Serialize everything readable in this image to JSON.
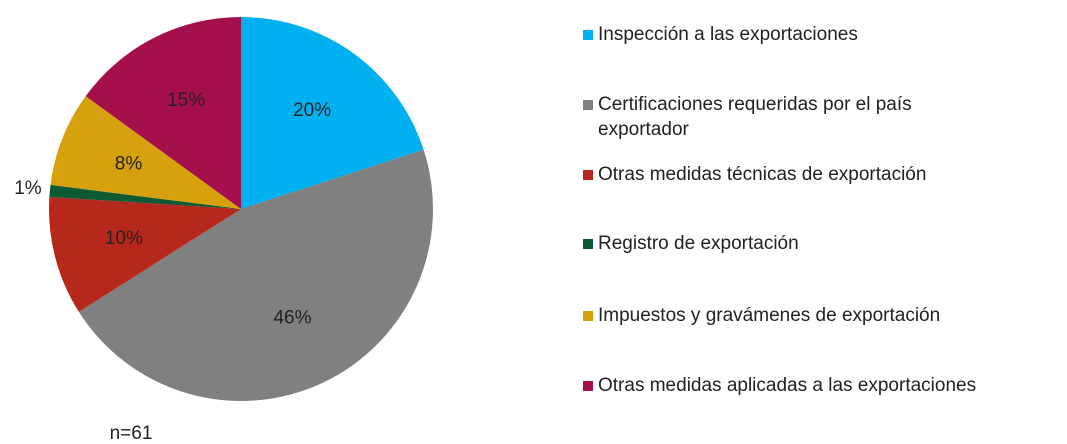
{
  "chart_data": {
    "type": "pie",
    "categories": [
      "Inspección a las exportaciones",
      "Certificaciones requeridas por el país exportador",
      "Otras medidas técnicas de exportación",
      "Registro de exportación",
      "Impuestos y gravámenes de exportación",
      "Otras medidas aplicadas a las exportaciones"
    ],
    "values": [
      20,
      46,
      10,
      1,
      8,
      15
    ],
    "value_labels": [
      "20%",
      "46%",
      "10%",
      "1%",
      "8%",
      "15%"
    ],
    "colors": [
      "#00b0f0",
      "#808080",
      "#b7281c",
      "#0b5a34",
      "#d6a10c",
      "#a50f4b"
    ],
    "note": "n=61"
  }
}
